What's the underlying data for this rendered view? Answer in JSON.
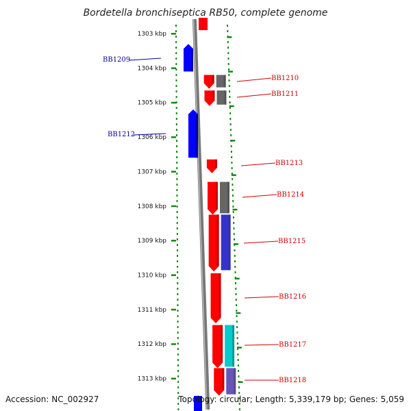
{
  "title": "Bordetella bronchiseptica RB50, complete genome",
  "footer": {
    "accession": "Accession: NC_002927",
    "summary": "Topology: circular; Length: 5,339,179 bp; Genes: 5,059"
  },
  "ticks": [
    {
      "label": "1303 kbp",
      "kbp": 1303
    },
    {
      "label": "1304 kbp",
      "kbp": 1304
    },
    {
      "label": "1305 kbp",
      "kbp": 1305
    },
    {
      "label": "1306 kbp",
      "kbp": 1306
    },
    {
      "label": "1307 kbp",
      "kbp": 1307
    },
    {
      "label": "1308 kbp",
      "kbp": 1308
    },
    {
      "label": "1309 kbp",
      "kbp": 1309
    },
    {
      "label": "1310 kbp",
      "kbp": 1310
    },
    {
      "label": "1311 kbp",
      "kbp": 1311
    },
    {
      "label": "1312 kbp",
      "kbp": 1312
    },
    {
      "label": "1313 kbp",
      "kbp": 1313
    }
  ],
  "genes": [
    {
      "label": "BB1209",
      "strand": "reverse",
      "color": "#0000ff",
      "start": 1303.3,
      "end": 1304.1
    },
    {
      "label": "BB1210",
      "strand": "forward",
      "color": "#ff0000",
      "start": 1304.2,
      "end": 1304.6,
      "cog_color": "#666666"
    },
    {
      "label": "BB1211",
      "strand": "forward",
      "color": "#ff0000",
      "start": 1304.65,
      "end": 1305.1,
      "cog_color": "#666666"
    },
    {
      "label": "BB1212",
      "strand": "reverse",
      "color": "#0000ff",
      "start": 1305.2,
      "end": 1306.6
    },
    {
      "label": "BB1213",
      "strand": "forward",
      "color": "#ff0000",
      "start": 1306.65,
      "end": 1307.05
    },
    {
      "label": "BB1214",
      "strand": "forward",
      "color": "#ff0000",
      "start": 1307.3,
      "end": 1308.25,
      "cog_color": "#666666"
    },
    {
      "label": "BB1215",
      "strand": "forward",
      "color": "#ff0000",
      "start": 1308.25,
      "end": 1309.9,
      "cog_color": "#3333cc"
    },
    {
      "label": "BB1216",
      "strand": "forward",
      "color": "#ff0000",
      "start": 1309.95,
      "end": 1311.4
    },
    {
      "label": "BB1217",
      "strand": "forward",
      "color": "#ff0000",
      "start": 1311.45,
      "end": 1312.7,
      "cog_color": "#00cccc"
    },
    {
      "label": "BB1218",
      "strand": "forward",
      "color": "#ff0000",
      "start": 1312.7,
      "end": 1313.5,
      "cog_color": "#6655bb"
    }
  ],
  "colors": {
    "forward": "#ff0000",
    "reverse": "#0000ff",
    "backbone": "#888888",
    "dots": "#118811",
    "label_forward": "#cc0000",
    "label_reverse": "#000099"
  }
}
